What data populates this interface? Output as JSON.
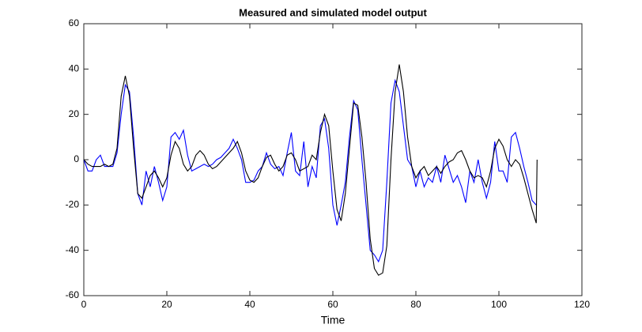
{
  "chart_data": {
    "type": "line",
    "title": "Measured and simulated model output",
    "xlabel": "Time",
    "x": [
      0,
      1,
      2,
      3,
      4,
      5,
      6,
      7,
      8,
      9,
      10,
      11,
      12,
      13,
      14,
      15,
      16,
      17,
      18,
      19,
      20,
      21,
      22,
      23,
      24,
      25,
      26,
      27,
      28,
      29,
      30,
      31,
      32,
      33,
      34,
      35,
      36,
      37,
      38,
      39,
      40,
      41,
      42,
      43,
      44,
      45,
      46,
      47,
      48,
      49,
      50,
      51,
      52,
      53,
      54,
      55,
      56,
      57,
      58,
      59,
      60,
      61,
      62,
      63,
      64,
      65,
      66,
      67,
      68,
      69,
      70,
      71,
      72,
      73,
      74,
      75,
      76,
      77,
      78,
      79,
      80,
      81,
      82,
      83,
      84,
      85,
      86,
      87,
      88,
      89,
      90,
      91,
      92,
      93,
      94,
      95,
      96,
      97,
      98,
      99,
      100,
      101,
      102,
      103,
      104,
      105,
      106,
      107,
      108,
      109,
      109.2
    ],
    "series": [
      {
        "color": "#0000ff",
        "values": [
          0,
          -5,
          -5,
          0,
          2,
          -3,
          -3,
          -3,
          3,
          20,
          33,
          30,
          10,
          -15,
          -20,
          -5,
          -12,
          -3,
          -10,
          -18,
          -12,
          10,
          12,
          9,
          13,
          2,
          -5,
          -4,
          -3,
          -2,
          -3,
          -2,
          0,
          1,
          3,
          5,
          9,
          5,
          0,
          -10,
          -10,
          -9,
          -5,
          -3,
          3,
          -2,
          -4,
          -3,
          -7,
          3,
          12,
          -5,
          -7,
          8,
          -12,
          -3,
          -8,
          15,
          18,
          5,
          -20,
          -29,
          -20,
          -10,
          10,
          26,
          22,
          0,
          -20,
          -40,
          -42,
          -45,
          -40,
          -10,
          25,
          35,
          30,
          15,
          0,
          -3,
          -12,
          -5,
          -12,
          -8,
          -10,
          -3,
          -10,
          2,
          -4,
          -10,
          -7,
          -12,
          -19,
          -5,
          -10,
          0,
          -10,
          -17,
          -10,
          8,
          -5,
          -5,
          -10,
          10,
          12,
          5,
          -3,
          -10,
          -18,
          -20,
          null
        ]
      },
      {
        "color": "#000000",
        "values": [
          0,
          -2,
          -3,
          -3,
          -3,
          -2,
          -3,
          -2,
          5,
          28,
          37,
          28,
          5,
          -15,
          -17,
          -12,
          -7,
          -5,
          -8,
          -12,
          -8,
          2,
          8,
          5,
          -2,
          -5,
          -3,
          2,
          4,
          2,
          -2,
          -4,
          -3,
          -1,
          1,
          3,
          5,
          8,
          3,
          -5,
          -9,
          -10,
          -8,
          -3,
          1,
          2,
          -2,
          -5,
          -3,
          2,
          3,
          0,
          -5,
          -4,
          -3,
          2,
          0,
          12,
          20,
          15,
          -5,
          -22,
          -27,
          -15,
          5,
          25,
          24,
          10,
          -10,
          -35,
          -48,
          -51,
          -50,
          -38,
          0,
          30,
          42,
          30,
          10,
          -3,
          -8,
          -5,
          -3,
          -7,
          -5,
          -3,
          -6,
          -3,
          -1,
          0,
          3,
          4,
          0,
          -5,
          -8,
          -7,
          -8,
          -12,
          -5,
          5,
          9,
          6,
          0,
          -3,
          0,
          -2,
          -8,
          -15,
          -22,
          -28,
          0
        ]
      }
    ],
    "xlim": [
      0,
      120
    ],
    "xticks": [
      0,
      20,
      40,
      60,
      80,
      100,
      120
    ],
    "ylim": [
      -60,
      60
    ],
    "yticks": [
      -60,
      -40,
      -20,
      0,
      20,
      40,
      60
    ],
    "grid": false
  }
}
